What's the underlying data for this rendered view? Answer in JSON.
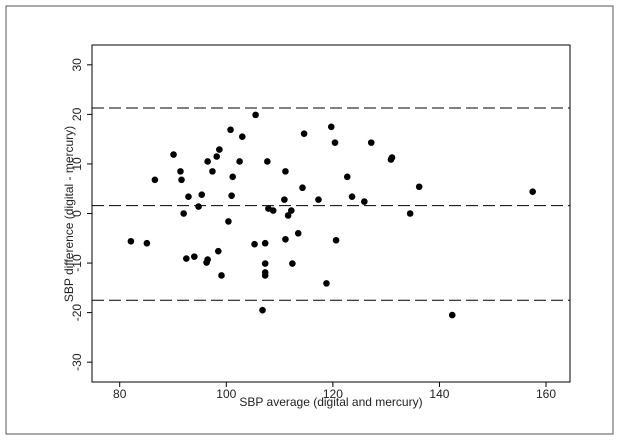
{
  "chart_data": {
    "type": "scatter",
    "x_label": "SBP average (digital and mercury)",
    "y_label": "SBP difference (digital - mercury)",
    "x": [
      82.1,
      85.1,
      86.6,
      90.1,
      91.4,
      91.6,
      92.0,
      92.5,
      92.9,
      94.0,
      94.8,
      95.4,
      96.3,
      96.5,
      96.5,
      97.4,
      98.2,
      98.7,
      98.5,
      99.1,
      100.4,
      100.8,
      101.0,
      101.2,
      102.5,
      103.0,
      105.3,
      105.5,
      106.8,
      107.3,
      107.3,
      107.3,
      107.3,
      107.7,
      107.9,
      108.8,
      111.1,
      110.9,
      111.1,
      111.6,
      112.2,
      112.4,
      113.5,
      114.3,
      114.6,
      117.3,
      118.8,
      119.7,
      120.4,
      120.6,
      122.7,
      123.6,
      125.9,
      127.2,
      130.9,
      131.1,
      134.5,
      136.2,
      142.4,
      157.5
    ],
    "y": [
      -5.6,
      -6.0,
      6.8,
      11.9,
      8.5,
      6.8,
      0.0,
      -9.1,
      3.4,
      -8.7,
      1.4,
      3.8,
      -9.9,
      -9.3,
      10.5,
      8.5,
      11.5,
      12.9,
      -7.6,
      -12.5,
      -1.6,
      16.9,
      3.6,
      7.4,
      10.5,
      15.5,
      -6.2,
      19.9,
      -19.5,
      -6.0,
      -12.5,
      -11.9,
      -10.1,
      10.5,
      1.0,
      0.6,
      8.5,
      2.8,
      -5.2,
      -0.4,
      0.6,
      -10.1,
      -4.0,
      5.2,
      16.1,
      2.8,
      -14.1,
      17.5,
      14.3,
      -5.4,
      7.4,
      3.4,
      2.4,
      14.3,
      10.9,
      11.3,
      0.0,
      5.4,
      -20.5,
      4.4
    ],
    "color": "#000000",
    "reference_lines": [
      21.3,
      1.6,
      -17.5
    ],
    "xlim": [
      74.8,
      164.5
    ],
    "xticks": [
      80,
      100,
      120,
      140,
      160
    ],
    "ylim": [
      -34,
      34
    ],
    "yticks": [
      -30,
      -20,
      -10,
      0,
      10,
      20,
      30
    ],
    "grid": false
  }
}
